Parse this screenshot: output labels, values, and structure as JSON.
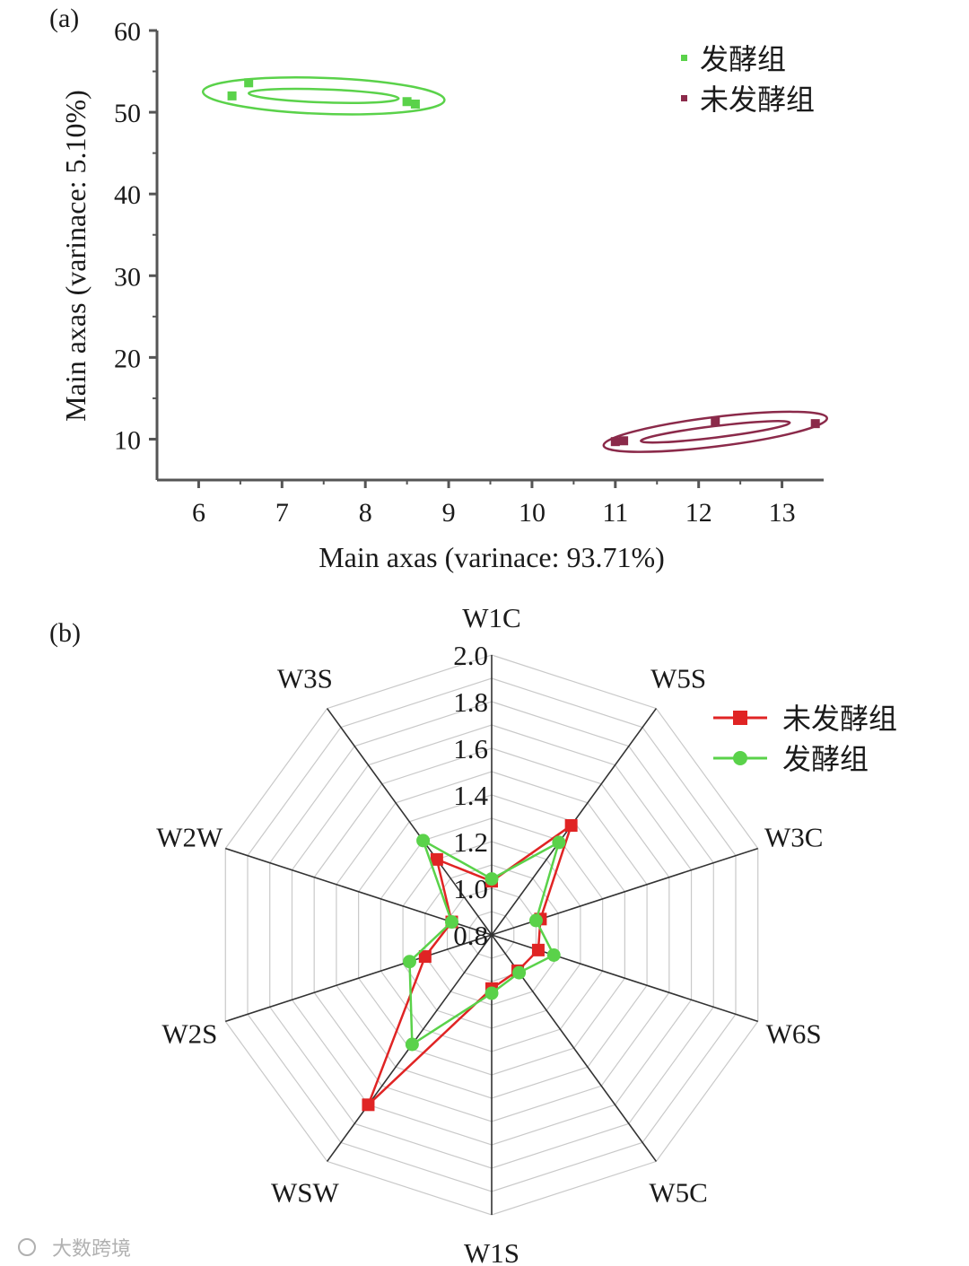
{
  "watermark": "大数跨境",
  "chart_data": [
    {
      "panel_label": "(a)",
      "type": "scatter",
      "xlabel": "Main axas (varinace: 93.71%)",
      "ylabel": "Main axas (varinace: 5.10%)",
      "xlim": [
        5.5,
        13.5
      ],
      "ylim": [
        5,
        60
      ],
      "xticks": [
        "6",
        "7",
        "8",
        "9",
        "10",
        "11",
        "12",
        "13"
      ],
      "yticks": [
        "10",
        "20",
        "30",
        "40",
        "50",
        "60"
      ],
      "legend_position": "top-right",
      "series": [
        {
          "name": "发酵组",
          "color": "#5ad24a",
          "points": [
            [
              6.4,
              52.0
            ],
            [
              6.6,
              53.6
            ],
            [
              8.5,
              51.3
            ],
            [
              8.6,
              51.0
            ]
          ],
          "ellipse": {
            "center": [
              7.5,
              52.0
            ],
            "rx_outer": 1.45,
            "ry_outer": 2.2,
            "rx_inner": 0.9,
            "ry_inner": 0.8,
            "angle_deg": 2
          }
        },
        {
          "name": "未发酵组",
          "color": "#8b2a4a",
          "points": [
            [
              11.0,
              9.7
            ],
            [
              11.1,
              9.8
            ],
            [
              12.2,
              12.2
            ],
            [
              13.4,
              11.9
            ]
          ],
          "ellipse": {
            "center": [
              12.2,
              10.9
            ],
            "rx_outer": 1.35,
            "ry_outer": 1.8,
            "rx_inner": 0.9,
            "ry_inner": 0.7,
            "angle_deg": -7
          }
        }
      ]
    },
    {
      "panel_label": "(b)",
      "type": "radar",
      "axes": [
        "W1C",
        "W5S",
        "W3C",
        "W6S",
        "W5C",
        "W1S",
        "WSW",
        "W2S",
        "W2W",
        "W3S"
      ],
      "radial_ticks": [
        "0.8",
        "1.0",
        "1.2",
        "1.4",
        "1.6",
        "1.8",
        "2.0"
      ],
      "rlim": [
        0.8,
        2.0
      ],
      "legend_position": "top-right",
      "series": [
        {
          "name": "未发酵组",
          "color": "#e02424",
          "marker": "square",
          "values": [
            1.03,
            1.38,
            1.02,
            1.01,
            0.99,
            1.03,
            1.7,
            1.1,
            0.98,
            1.2
          ]
        },
        {
          "name": "发酵组",
          "color": "#5ad24a",
          "marker": "circle",
          "values": [
            1.04,
            1.29,
            1.0,
            1.08,
            1.0,
            1.05,
            1.38,
            1.17,
            0.98,
            1.3
          ]
        }
      ]
    }
  ]
}
